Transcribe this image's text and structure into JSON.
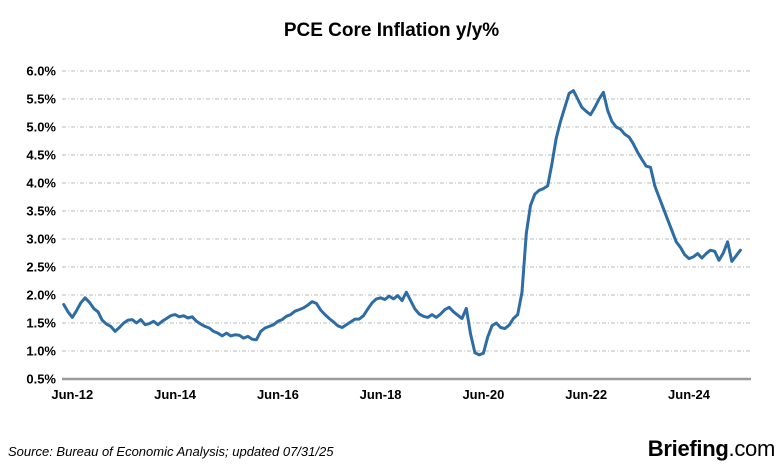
{
  "title": "PCE Core Inflation y/y%",
  "source_note": "Source: Bureau of Economic Analysis; updated 07/31/25",
  "logo": {
    "brand": "Briefing",
    "tld": ".com",
    "color": "#1b3a67"
  },
  "chart_data": {
    "type": "line",
    "title": "PCE Core Inflation y/y%",
    "series_name": "PCE Core Inflation y/y%",
    "line_color": "#2e6da4",
    "grid": "horizontal, light gray dash-dot",
    "legend": "none",
    "ylim": [
      0.5,
      6.0
    ],
    "y_unit": "%",
    "y_ticks": [
      {
        "label": "6.0%",
        "value": 6.0
      },
      {
        "label": "5.5%",
        "value": 5.5
      },
      {
        "label": "5.0%",
        "value": 5.0
      },
      {
        "label": "4.5%",
        "value": 4.5
      },
      {
        "label": "4.0%",
        "value": 4.0
      },
      {
        "label": "3.5%",
        "value": 3.5
      },
      {
        "label": "3.0%",
        "value": 3.0
      },
      {
        "label": "2.5%",
        "value": 2.5
      },
      {
        "label": "2.0%",
        "value": 2.0
      },
      {
        "label": "1.5%",
        "value": 1.5
      },
      {
        "label": "1.0%",
        "value": 1.0
      },
      {
        "label": "0.5%",
        "value": 0.5,
        "axis_line": true
      }
    ],
    "x_ticks": [
      {
        "label": "Jun-12",
        "m": 2
      },
      {
        "label": "Jun-14",
        "m": 26
      },
      {
        "label": "Jun-16",
        "m": 50
      },
      {
        "label": "Jun-18",
        "m": 74
      },
      {
        "label": "Jun-20",
        "m": 98
      },
      {
        "label": "Jun-22",
        "m": 122
      },
      {
        "label": "Jun-24",
        "m": 146
      }
    ],
    "x_range": {
      "start": "Apr-2012",
      "end": "Jun-2025",
      "frequency": "monthly"
    },
    "values": [
      1.83,
      1.7,
      1.6,
      1.72,
      1.86,
      1.95,
      1.87,
      1.76,
      1.7,
      1.55,
      1.48,
      1.44,
      1.35,
      1.42,
      1.5,
      1.55,
      1.56,
      1.5,
      1.56,
      1.47,
      1.49,
      1.53,
      1.47,
      1.53,
      1.58,
      1.63,
      1.65,
      1.61,
      1.63,
      1.59,
      1.61,
      1.53,
      1.48,
      1.44,
      1.41,
      1.35,
      1.32,
      1.27,
      1.32,
      1.27,
      1.29,
      1.28,
      1.23,
      1.26,
      1.21,
      1.2,
      1.35,
      1.41,
      1.44,
      1.47,
      1.53,
      1.56,
      1.62,
      1.65,
      1.71,
      1.74,
      1.77,
      1.82,
      1.88,
      1.85,
      1.73,
      1.65,
      1.58,
      1.52,
      1.45,
      1.42,
      1.47,
      1.52,
      1.57,
      1.57,
      1.63,
      1.75,
      1.86,
      1.93,
      1.95,
      1.92,
      1.98,
      1.93,
      1.99,
      1.9,
      2.05,
      1.9,
      1.75,
      1.66,
      1.62,
      1.6,
      1.65,
      1.6,
      1.66,
      1.74,
      1.78,
      1.7,
      1.64,
      1.58,
      1.76,
      1.3,
      0.97,
      0.93,
      0.96,
      1.25,
      1.45,
      1.5,
      1.42,
      1.4,
      1.46,
      1.58,
      1.65,
      2.05,
      3.1,
      3.6,
      3.8,
      3.87,
      3.9,
      3.95,
      4.35,
      4.8,
      5.1,
      5.35,
      5.6,
      5.65,
      5.5,
      5.35,
      5.28,
      5.22,
      5.35,
      5.5,
      5.62,
      5.3,
      5.1,
      5.0,
      4.96,
      4.87,
      4.82,
      4.7,
      4.55,
      4.42,
      4.3,
      4.28,
      3.95,
      3.75,
      3.55,
      3.35,
      3.15,
      2.95,
      2.85,
      2.72,
      2.65,
      2.68,
      2.74,
      2.66,
      2.74,
      2.8,
      2.78,
      2.62,
      2.75,
      2.95,
      2.6,
      2.7,
      2.8
    ]
  }
}
